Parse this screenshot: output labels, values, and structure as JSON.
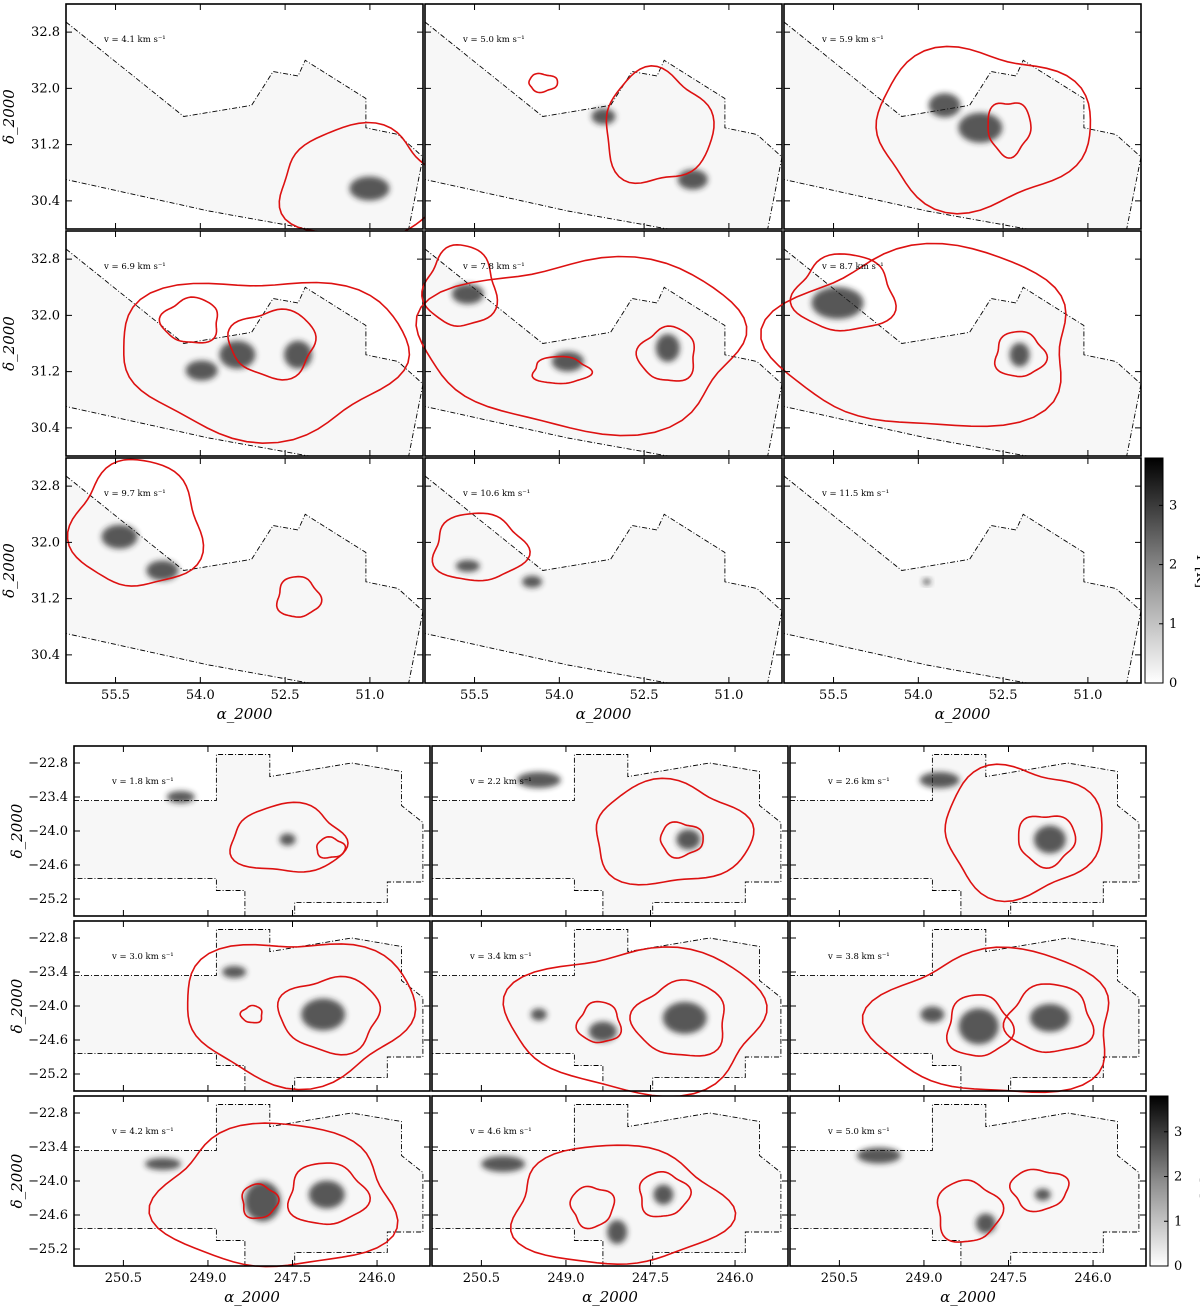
{
  "chart_data": [
    {
      "type": "heatmap",
      "region": "top",
      "xlabel": "α_2000",
      "ylabel": "δ_2000",
      "xlim": [
        57.0,
        50.0
      ],
      "ylim": [
        29.8,
        33.2
      ],
      "x_ticks": [
        "55.5",
        "54.0",
        "52.5",
        "51.0"
      ],
      "y_ticks": [
        "32.8",
        "32.0",
        "31.2",
        "30.4"
      ],
      "velocity_unit": "km s⁻¹",
      "panels": [
        {
          "velocity": "4.1"
        },
        {
          "velocity": "5.0"
        },
        {
          "velocity": "5.9"
        },
        {
          "velocity": "6.9"
        },
        {
          "velocity": "7.8"
        },
        {
          "velocity": "8.7"
        },
        {
          "velocity": "9.7"
        },
        {
          "velocity": "10.6"
        },
        {
          "velocity": "11.5"
        }
      ],
      "colorbar": {
        "label": "T [K]",
        "range": [
          0,
          3.8
        ],
        "ticks": [
          "0",
          "1",
          "2",
          "3"
        ],
        "colormap": "gray_r"
      },
      "contour_color": "#dd1111"
    },
    {
      "type": "heatmap",
      "region": "bottom",
      "xlabel": "α_2000",
      "ylabel": "δ_2000",
      "xlim": [
        251.8,
        245.0
      ],
      "ylim": [
        -25.7,
        -22.6
      ],
      "x_ticks": [
        "250.5",
        "249.0",
        "247.5",
        "246.0"
      ],
      "y_ticks": [
        "−22.8",
        "−23.4",
        "−24.0",
        "−24.6",
        "−25.2"
      ],
      "velocity_unit": "km s⁻¹",
      "panels": [
        {
          "velocity": "1.8"
        },
        {
          "velocity": "2.2"
        },
        {
          "velocity": "2.6"
        },
        {
          "velocity": "3.0"
        },
        {
          "velocity": "3.4"
        },
        {
          "velocity": "3.8"
        },
        {
          "velocity": "4.2"
        },
        {
          "velocity": "4.6"
        },
        {
          "velocity": "5.0"
        }
      ],
      "colorbar": {
        "label": "T [K]",
        "range": [
          0,
          3.8
        ],
        "ticks": [
          "0",
          "1",
          "2",
          "3"
        ],
        "colormap": "gray_r"
      },
      "contour_color": "#dd1111"
    }
  ]
}
